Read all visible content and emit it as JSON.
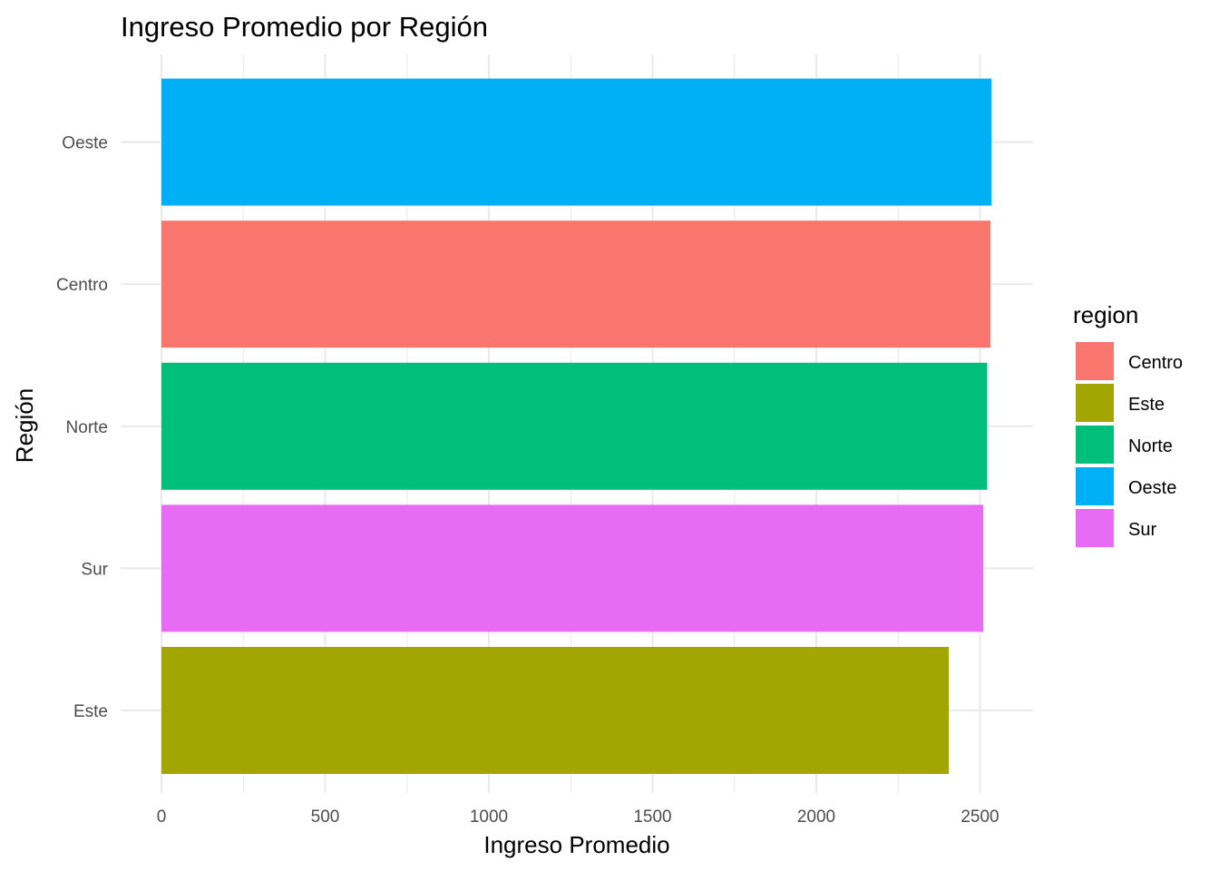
{
  "chart_data": {
    "type": "bar",
    "orientation": "horizontal",
    "title": "Ingreso Promedio por Región",
    "xlabel": "Ingreso Promedio",
    "ylabel": "Región",
    "xlim": [
      0,
      2650
    ],
    "x_ticks": [
      0,
      500,
      1000,
      1500,
      2000,
      2500
    ],
    "categories": [
      "Este",
      "Sur",
      "Norte",
      "Centro",
      "Oeste"
    ],
    "values": [
      2405,
      2510,
      2522,
      2532,
      2535
    ],
    "grid": true,
    "legend": {
      "title": "region",
      "placement": "right",
      "entries": [
        {
          "label": "Centro",
          "color": "#F8766D"
        },
        {
          "label": "Este",
          "color": "#A3A500"
        },
        {
          "label": "Norte",
          "color": "#00BF7D"
        },
        {
          "label": "Oeste",
          "color": "#00B0F6"
        },
        {
          "label": "Sur",
          "color": "#E76BF3"
        }
      ]
    },
    "colors": {
      "Centro": "#F8766D",
      "Este": "#A3A500",
      "Norte": "#00BF7D",
      "Oeste": "#00B0F6",
      "Sur": "#E76BF3"
    }
  }
}
